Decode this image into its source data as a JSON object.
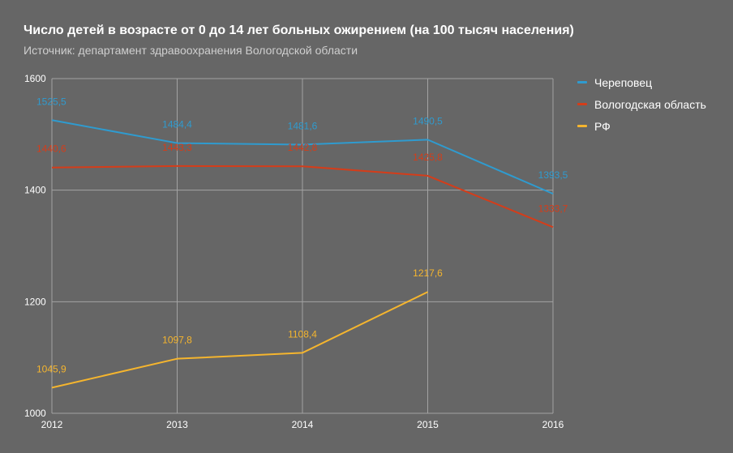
{
  "chart_data": {
    "type": "line",
    "title": "Число детей в возрасте от 0 до 14 лет больных ожирением (на 100 тысяч населения)",
    "subtitle": "Источник: департамент здравоохранения Вологодской области",
    "x": [
      "2012",
      "2013",
      "2014",
      "2015",
      "2016"
    ],
    "ylim": [
      1000,
      1600
    ],
    "yticks": [
      "1000",
      "1200",
      "1400",
      "1600"
    ],
    "grid": true,
    "legend_position": "right",
    "series": [
      {
        "name": "Череповец",
        "color": "#2f9bcf",
        "values": [
          1525.5,
          1484.4,
          1481.6,
          1490.5,
          1393.5
        ],
        "labels": [
          "1525,5",
          "1484,4",
          "1481,6",
          "1490,5",
          "1393,5"
        ]
      },
      {
        "name": "Вологодская область",
        "color": "#d43d1a",
        "values": [
          1440.6,
          1443.3,
          1442.8,
          1425.8,
          1333.7
        ],
        "labels": [
          "1440,6",
          "1443,3",
          "1442,8",
          "1425,8",
          "1333,7"
        ]
      },
      {
        "name": "РФ",
        "color": "#f5b52e",
        "values": [
          1045.9,
          1097.8,
          1108.4,
          1217.6,
          null
        ],
        "labels": [
          "1045,9",
          "1097,8",
          "1108,4",
          "1217,6",
          ""
        ]
      }
    ]
  }
}
